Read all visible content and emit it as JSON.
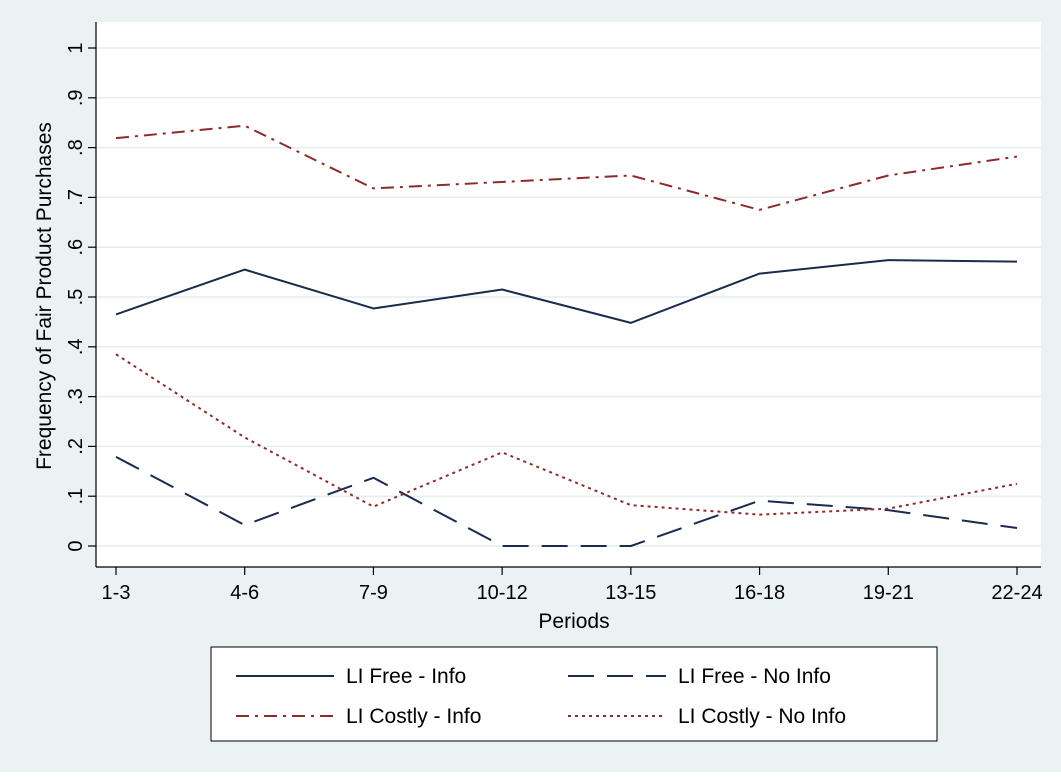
{
  "chart_data": {
    "type": "line",
    "title": "",
    "xlabel": "Periods",
    "ylabel": "Frequency of Fair Product Purchases",
    "categories": [
      "1-3",
      "4-6",
      "7-9",
      "10-12",
      "13-15",
      "16-18",
      "19-21",
      "22-24"
    ],
    "yticks": [
      0,
      0.1,
      0.2,
      0.3,
      0.4,
      0.5,
      0.6,
      0.7,
      0.8,
      0.9,
      1
    ],
    "ytick_labels": [
      "0",
      ".1",
      ".2",
      ".3",
      ".4",
      ".5",
      ".6",
      ".7",
      ".8",
      ".9",
      "1"
    ],
    "ylim": [
      0,
      1
    ],
    "grid": true,
    "legend_position": "bottom",
    "series": [
      {
        "name": "LI Free - Info",
        "color": "#1a2b4c",
        "style": "solid",
        "values": [
          0.465,
          0.555,
          0.477,
          0.515,
          0.448,
          0.547,
          0.574,
          0.571
        ]
      },
      {
        "name": "LI Free - No Info",
        "color": "#1a2b4c",
        "style": "longdash",
        "values": [
          0.179,
          0.042,
          0.137,
          0.0,
          0.0,
          0.091,
          0.072,
          0.036
        ]
      },
      {
        "name": "LI Costly - Info",
        "color": "#8b2c2c",
        "style": "dashdot",
        "values": [
          0.819,
          0.844,
          0.718,
          0.731,
          0.744,
          0.675,
          0.744,
          0.782
        ]
      },
      {
        "name": "LI Costly - No Info",
        "color": "#8b2c2c",
        "style": "dot",
        "values": [
          0.385,
          0.218,
          0.079,
          0.188,
          0.082,
          0.063,
          0.075,
          0.125
        ]
      }
    ]
  }
}
